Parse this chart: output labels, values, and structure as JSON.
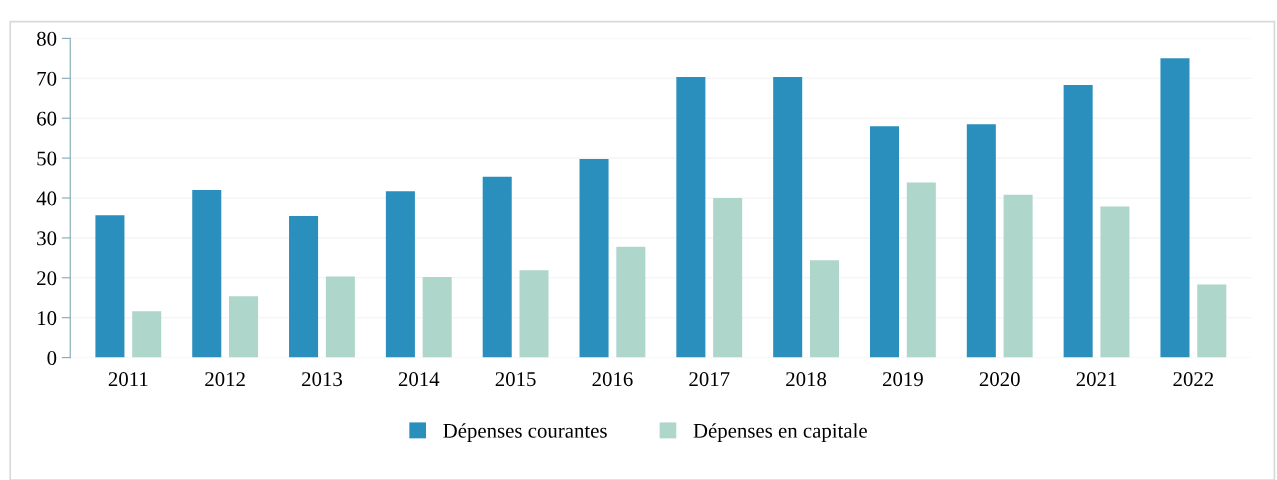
{
  "chart_data": {
    "type": "bar",
    "categories": [
      "2011",
      "2012",
      "2013",
      "2014",
      "2015",
      "2016",
      "2017",
      "2018",
      "2019",
      "2020",
      "2021",
      "2022"
    ],
    "series": [
      {
        "name": "Dépenses courantes",
        "color": "#2a8fbd",
        "values": [
          35.7,
          42,
          35.5,
          41.7,
          45.3,
          49.8,
          70.3,
          70.3,
          58,
          58.5,
          68.3,
          75
        ]
      },
      {
        "name": "Dépenses en capitale",
        "color": "#aed6cb",
        "values": [
          11.6,
          15.4,
          20.3,
          20.2,
          21.9,
          27.8,
          40,
          24.4,
          43.9,
          40.8,
          37.9,
          18.3
        ]
      }
    ],
    "ylim": [
      0,
      80
    ],
    "yticks": [
      0,
      10,
      20,
      30,
      40,
      50,
      60,
      70,
      80
    ],
    "grid": "y",
    "legend": "bottom"
  }
}
